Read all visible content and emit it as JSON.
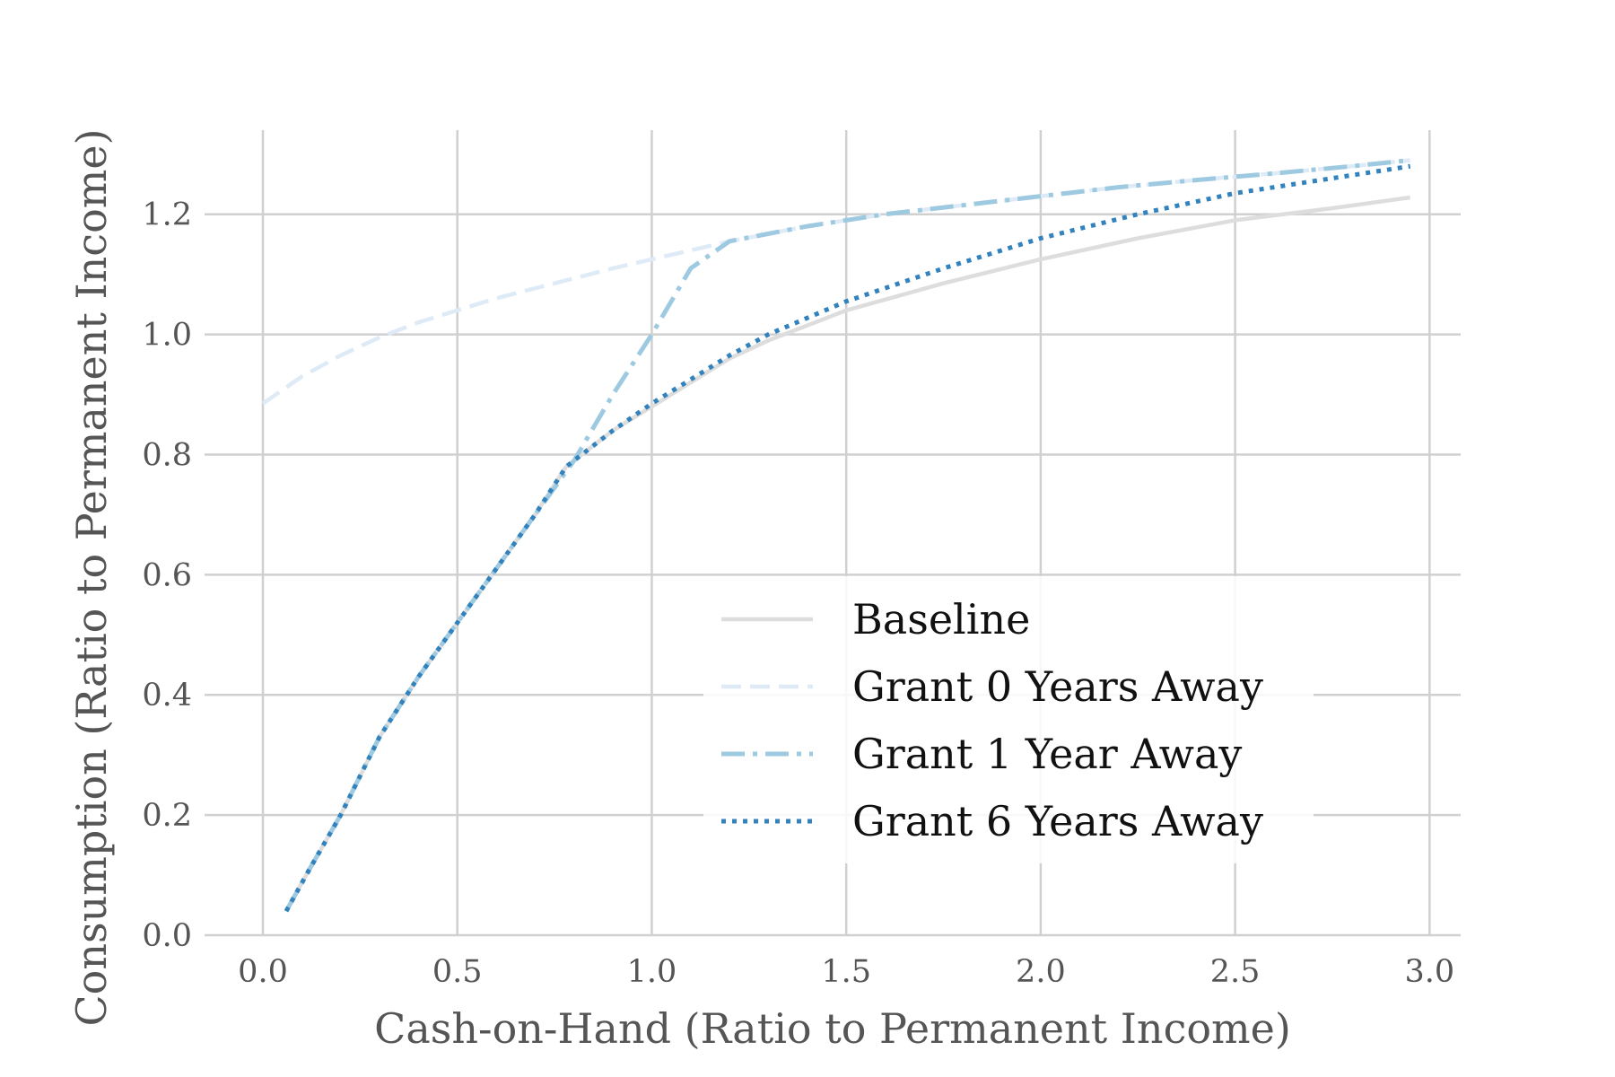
{
  "chart_data": {
    "type": "line",
    "title": "",
    "xlabel": "Cash-on-Hand (Ratio to Permanent Income)",
    "ylabel": "Consumption (Ratio to Permanent Income)",
    "xlim": [
      -0.15,
      3.08
    ],
    "ylim": [
      0.0,
      1.34
    ],
    "xticks": [
      0.0,
      0.5,
      1.0,
      1.5,
      2.0,
      2.5,
      3.0
    ],
    "xtick_labels": [
      "0.0",
      "0.5",
      "1.0",
      "1.5",
      "2.0",
      "2.5",
      "3.0"
    ],
    "yticks": [
      0.0,
      0.2,
      0.4,
      0.6,
      0.8,
      1.0,
      1.2
    ],
    "ytick_labels": [
      "0.0",
      "0.2",
      "0.4",
      "0.6",
      "0.8",
      "1.0",
      "1.2"
    ],
    "grid": true,
    "legend_position": "lower-right",
    "series": [
      {
        "name": "Baseline",
        "color": "#dddddd",
        "style": "solid",
        "x": [
          0.06,
          0.12,
          0.2,
          0.3,
          0.4,
          0.5,
          0.6,
          0.7,
          0.78,
          0.9,
          1.0,
          1.1,
          1.2,
          1.3,
          1.5,
          1.75,
          2.0,
          2.25,
          2.5,
          2.75,
          2.95
        ],
        "y": [
          0.04,
          0.11,
          0.2,
          0.33,
          0.43,
          0.52,
          0.61,
          0.7,
          0.78,
          0.84,
          0.88,
          0.92,
          0.96,
          0.99,
          1.04,
          1.085,
          1.125,
          1.16,
          1.19,
          1.21,
          1.228
        ]
      },
      {
        "name": "Grant 0 Years Away",
        "color": "#deebf7",
        "style": "dashed",
        "x": [
          0.0,
          0.1,
          0.2,
          0.3,
          0.4,
          0.5,
          0.6,
          0.75,
          0.9,
          1.0,
          1.1,
          1.2,
          1.4,
          1.6,
          1.8,
          2.0,
          2.2,
          2.4,
          2.6,
          2.8,
          2.95
        ],
        "y": [
          0.885,
          0.93,
          0.965,
          0.995,
          1.02,
          1.04,
          1.06,
          1.085,
          1.11,
          1.125,
          1.14,
          1.155,
          1.18,
          1.2,
          1.215,
          1.23,
          1.245,
          1.257,
          1.268,
          1.28,
          1.29
        ]
      },
      {
        "name": "Grant 1 Year Away",
        "color": "#9ecae1",
        "style": "dashdot",
        "x": [
          0.06,
          0.12,
          0.2,
          0.3,
          0.4,
          0.5,
          0.6,
          0.7,
          0.8,
          0.9,
          1.0,
          1.1,
          1.2,
          1.4,
          1.6,
          1.8,
          2.0,
          2.2,
          2.4,
          2.6,
          2.8,
          2.95
        ],
        "y": [
          0.04,
          0.11,
          0.2,
          0.33,
          0.43,
          0.52,
          0.61,
          0.7,
          0.79,
          0.9,
          1.0,
          1.11,
          1.155,
          1.18,
          1.2,
          1.215,
          1.23,
          1.245,
          1.257,
          1.268,
          1.28,
          1.29
        ]
      },
      {
        "name": "Grant 6 Years Away",
        "color": "#3182bd",
        "style": "dotted",
        "x": [
          0.06,
          0.12,
          0.2,
          0.3,
          0.4,
          0.5,
          0.6,
          0.7,
          0.78,
          0.9,
          1.0,
          1.1,
          1.2,
          1.3,
          1.5,
          1.75,
          2.0,
          2.25,
          2.5,
          2.75,
          2.95
        ],
        "y": [
          0.04,
          0.11,
          0.2,
          0.33,
          0.43,
          0.52,
          0.61,
          0.7,
          0.78,
          0.84,
          0.885,
          0.925,
          0.965,
          1.0,
          1.055,
          1.11,
          1.16,
          1.2,
          1.235,
          1.26,
          1.28
        ]
      }
    ]
  }
}
